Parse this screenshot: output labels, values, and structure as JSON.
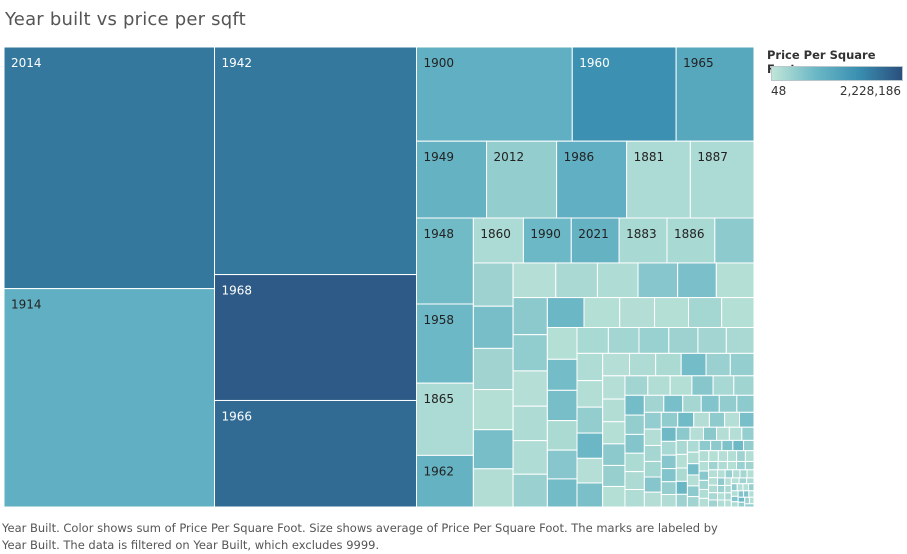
{
  "title": "Year built vs price per sqft",
  "legend": {
    "title": "Price Per Square Foot",
    "min_label": "48",
    "max_label": "2,228,186",
    "colors": [
      "#c0e5d8",
      "#6cb8c6",
      "#3a8fb1",
      "#2a4f7d"
    ]
  },
  "caption": "Year Built.  Color shows sum of Price Per Square Foot.  Size shows average of Price Per Square Foot.  The marks are labeled by Year Built. The data is filtered on Year Built, which excludes 9999.",
  "chart_data": {
    "type": "treemap",
    "size_measure": "average of Price Per Square Foot",
    "color_measure": "sum of Price Per Square Foot",
    "label_field": "Year Built",
    "color_range": [
      48,
      2228186
    ],
    "labeled_items": [
      {
        "label": "2014",
        "size": 52000,
        "color": 1750000
      },
      {
        "label": "1914",
        "size": 47000,
        "color": 900000
      },
      {
        "label": "1942",
        "size": 47000,
        "color": 1750000
      },
      {
        "label": "1968",
        "size": 26000,
        "color": 2100000
      },
      {
        "label": "1966",
        "size": 22000,
        "color": 1900000
      },
      {
        "label": "1900",
        "size": 15000,
        "color": 900000
      },
      {
        "label": "1960",
        "size": 10000,
        "color": 1450000
      },
      {
        "label": "1965",
        "size": 7500,
        "color": 1050000
      },
      {
        "label": "1949",
        "size": 5500,
        "color": 850000
      },
      {
        "label": "2012",
        "size": 5500,
        "color": 400000
      },
      {
        "label": "1986",
        "size": 5500,
        "color": 900000
      },
      {
        "label": "1881",
        "size": 5000,
        "color": 180000
      },
      {
        "label": "1887",
        "size": 5000,
        "color": 180000
      },
      {
        "label": "1948",
        "size": 5000,
        "color": 700000
      },
      {
        "label": "1958",
        "size": 4600,
        "color": 750000
      },
      {
        "label": "1865",
        "size": 4200,
        "color": 180000
      },
      {
        "label": "1962",
        "size": 3000,
        "color": 850000
      },
      {
        "label": "1860",
        "size": 2300,
        "color": 180000
      },
      {
        "label": "1990",
        "size": 2200,
        "color": 750000
      },
      {
        "label": "2021",
        "size": 2200,
        "color": 850000
      },
      {
        "label": "1883",
        "size": 2200,
        "color": 200000
      },
      {
        "label": "1886",
        "size": 2200,
        "color": 200000
      }
    ],
    "unlabeled_count": 165,
    "unlabeled_size_range": [
      30,
      1800
    ],
    "unlabeled_color_range": [
      100000,
      800000
    ]
  }
}
